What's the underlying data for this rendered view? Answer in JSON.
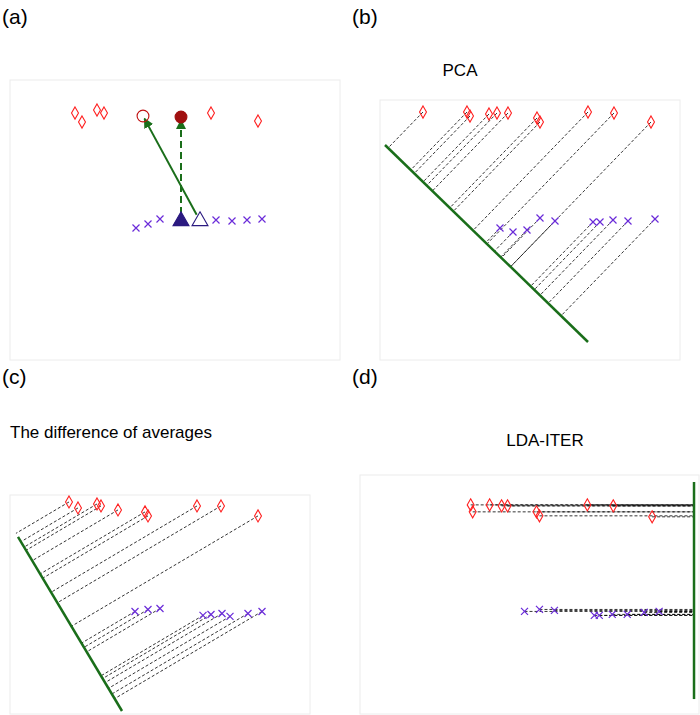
{
  "chart_data": [
    {
      "type": "scatter",
      "panel_label": "(a)",
      "xlim": [
        0,
        33
      ],
      "ylim": [
        0,
        28
      ],
      "tick_labels": false,
      "series": [
        {
          "color": "#ff2020",
          "marker": "diamond",
          "x": [
            6.5,
            7.2,
            8.7,
            9.4,
            20.1,
            24.8
          ],
          "values": [
            24.7,
            23.8,
            25.0,
            24.7,
            24.7,
            23.9
          ]
        },
        {
          "color": "#6a2bd9",
          "marker": "x",
          "x": [
            12.6,
            13.8,
            15.0,
            20.6,
            22.2,
            23.7,
            25.2
          ],
          "values": [
            13.2,
            13.6,
            14.1,
            14.0,
            13.9,
            14.0,
            14.1
          ]
        },
        {
          "color": "#c01010",
          "marker": "open-circle",
          "x": [
            13.3
          ],
          "values": [
            24.4
          ]
        },
        {
          "color": "#a01010",
          "marker": "filled-circle",
          "x": [
            17.1
          ],
          "values": [
            24.3
          ]
        },
        {
          "color": "#2b1a80",
          "marker": "open-triangle",
          "x": [
            19.0
          ],
          "values": [
            13.9
          ]
        },
        {
          "color": "#2b1a80",
          "marker": "filled-triangle",
          "x": [
            17.1
          ],
          "values": [
            13.9
          ]
        }
      ],
      "arrows": [
        {
          "from": [
            19.0,
            13.9
          ],
          "to": [
            13.3,
            24.4
          ],
          "line_style": "solid",
          "color": "#1a6e1a"
        },
        {
          "from": [
            17.1,
            13.9
          ],
          "to": [
            17.1,
            24.3
          ],
          "line_style": "dashed",
          "color": "#1a6e1a"
        }
      ]
    },
    {
      "type": "scatter",
      "panel_label": "(b)",
      "title": "PCA",
      "xlim": [
        0,
        30
      ],
      "ylim": [
        0,
        26
      ],
      "tick_labels": false,
      "series": [
        {
          "color": "#ff2020",
          "marker": "diamond",
          "x": [
            4.3,
            8.7,
            9.0,
            10.9,
            11.7,
            12.8,
            15.7,
            16.0,
            20.8,
            23.4,
            27.1
          ],
          "values": [
            24.8,
            24.8,
            24.4,
            24.6,
            24.7,
            24.7,
            24.2,
            23.8,
            24.8,
            24.7,
            23.8
          ]
        },
        {
          "color": "#6a2bd9",
          "marker": "x",
          "x": [
            12.0,
            13.3,
            14.7,
            16.0,
            17.5,
            21.3,
            22.0,
            23.3,
            24.8,
            27.5
          ],
          "values": [
            13.2,
            12.8,
            13.0,
            14.2,
            13.9,
            13.8,
            13.8,
            14.0,
            13.9,
            14.1
          ]
        }
      ],
      "projection": {
        "from": [
          0.5,
          21.5
        ],
        "to": [
          20.8,
          1.8
        ],
        "color": "#1a6e1a"
      }
    },
    {
      "type": "scatter",
      "panel_label": "(c)",
      "title": "The difference of averages",
      "xlim": [
        0,
        30
      ],
      "ylim": [
        0,
        22
      ],
      "tick_labels": false,
      "series": [
        {
          "color": "#ff2020",
          "marker": "diamond",
          "x": [
            5.9,
            6.8,
            8.7,
            9.1,
            10.8,
            13.5,
            13.8,
            18.7,
            21.1,
            24.8
          ],
          "values": [
            21.3,
            20.7,
            21.1,
            20.9,
            20.5,
            20.3,
            19.9,
            20.9,
            20.9,
            19.9
          ]
        },
        {
          "color": "#6a2bd9",
          "marker": "x",
          "x": [
            12.5,
            13.8,
            15.0,
            19.3,
            20.1,
            21.2,
            22.0,
            23.8,
            25.2
          ],
          "values": [
            10.3,
            10.5,
            10.6,
            9.9,
            10.0,
            10.1,
            9.8,
            10.1,
            10.3
          ]
        }
      ],
      "projection": {
        "from": [
          0.8,
          17.8
        ],
        "to": [
          11.2,
          0.3
        ],
        "color": "#1a6e1a"
      }
    },
    {
      "type": "scatter",
      "panel_label": "(d)",
      "title": "LDA-ITER",
      "xlim": [
        0,
        34
      ],
      "ylim": [
        0,
        24
      ],
      "tick_labels": false,
      "series": [
        {
          "color": "#ff2020",
          "marker": "diamond",
          "x": [
            11.1,
            11.3,
            13.0,
            14.2,
            14.8,
            17.7,
            18.0,
            22.8,
            25.4,
            29.3
          ],
          "values": [
            21.0,
            20.3,
            21.0,
            20.9,
            20.9,
            20.3,
            19.9,
            21.0,
            20.9,
            19.8
          ]
        },
        {
          "color": "#6a2bd9",
          "marker": "x",
          "x": [
            16.5,
            18.0,
            19.5,
            23.5,
            24.0,
            25.3,
            26.8,
            28.5,
            30.0
          ],
          "values": [
            10.3,
            10.5,
            10.4,
            9.9,
            9.9,
            10.0,
            10.0,
            10.2,
            10.3
          ]
        }
      ],
      "projection": {
        "from": [
          33.5,
          1.5
        ],
        "to": [
          33.5,
          23.3
        ],
        "color": "#1a6e1a"
      }
    }
  ]
}
